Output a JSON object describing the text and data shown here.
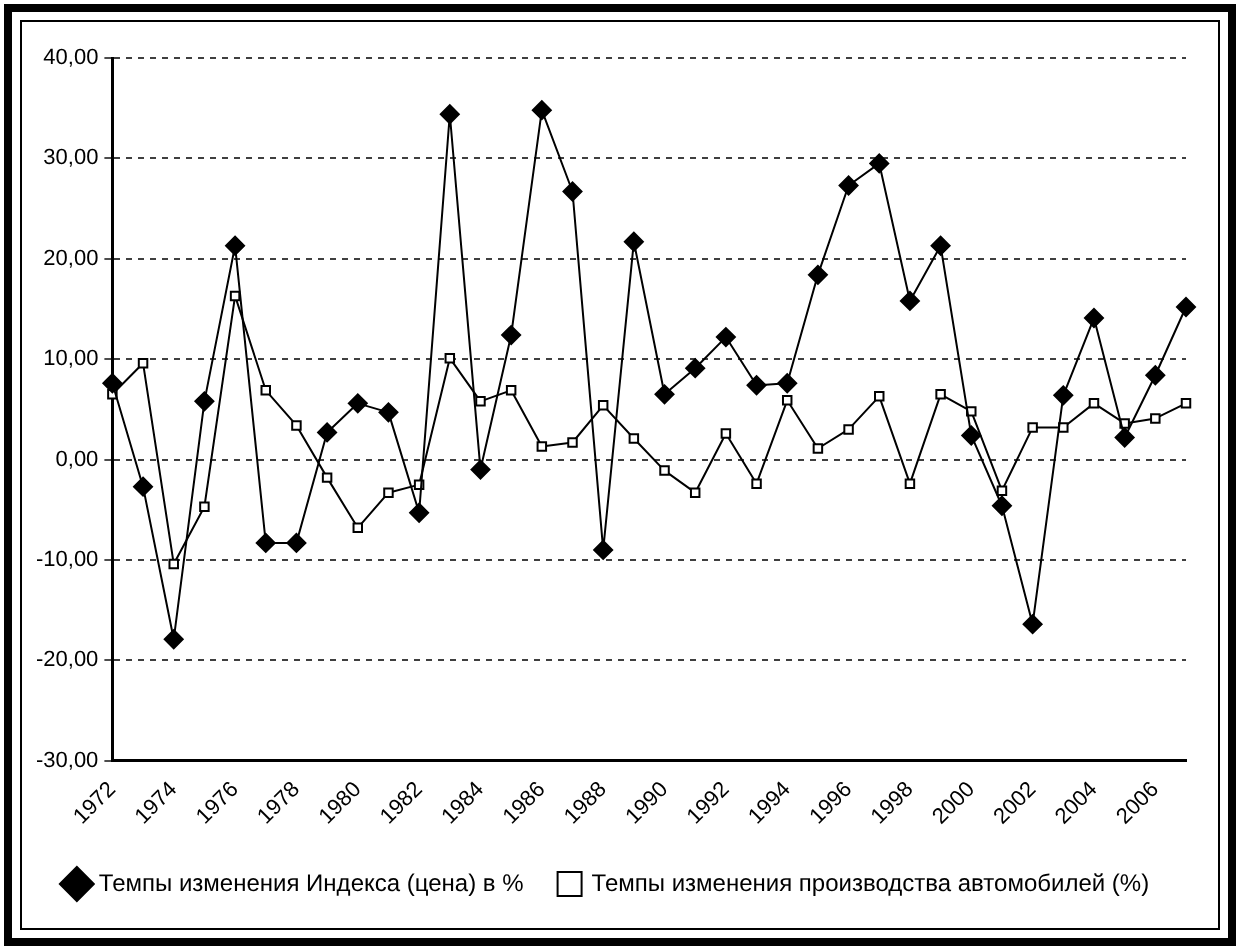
{
  "chart_data": {
    "type": "line",
    "categories": [
      "1972",
      null,
      "1974",
      null,
      "1976",
      null,
      "1978",
      null,
      "1980",
      null,
      "1982",
      null,
      "1984",
      null,
      "1986",
      null,
      "1988",
      null,
      "1990",
      null,
      "1992",
      null,
      "1994",
      null,
      "1996",
      null,
      "1998",
      null,
      "2000",
      null,
      "2002",
      null,
      "2004",
      null,
      "2006",
      null
    ],
    "series": [
      {
        "name": "Темпы изменения Индекса (цена) в %",
        "color": "#000000",
        "marker": "diamond",
        "values": [
          7.6,
          -2.7,
          -17.9,
          5.8,
          21.3,
          -8.3,
          -8.3,
          2.7,
          5.6,
          4.7,
          -5.3,
          34.4,
          -1.0,
          12.4,
          34.8,
          26.7,
          -9.0,
          21.7,
          6.5,
          9.1,
          12.2,
          7.4,
          7.6,
          18.4,
          27.3,
          29.5,
          15.8,
          21.3,
          2.4,
          -4.6,
          -16.4,
          6.4,
          14.1,
          2.2,
          8.4,
          15.2
        ]
      },
      {
        "name": "Темпы изменения производства автомобилей (%)",
        "color": "#000000",
        "marker": "square",
        "values": [
          6.5,
          9.6,
          -10.4,
          -4.7,
          16.3,
          6.9,
          3.4,
          -1.8,
          -6.8,
          -3.3,
          -2.5,
          10.1,
          5.8,
          6.9,
          1.3,
          1.7,
          5.4,
          2.1,
          -1.1,
          -3.3,
          2.6,
          -2.4,
          5.9,
          1.1,
          3.0,
          6.3,
          -2.4,
          6.5,
          4.8,
          -3.1,
          3.2,
          3.2,
          5.6,
          3.6,
          4.1,
          5.6
        ]
      }
    ],
    "ylim": [
      -30,
      40
    ],
    "yticks": [
      {
        "value": -30,
        "label": "-30,00"
      },
      {
        "value": -20,
        "label": "-20,00"
      },
      {
        "value": -10,
        "label": "-10,00"
      },
      {
        "value": 0,
        "label": "0,00"
      },
      {
        "value": 10,
        "label": "10,00"
      },
      {
        "value": 20,
        "label": "20,00"
      },
      {
        "value": 30,
        "label": "30,00"
      },
      {
        "value": 40,
        "label": "40,00"
      }
    ],
    "grid": "y",
    "line_style": "solid",
    "legend": "bottom"
  }
}
